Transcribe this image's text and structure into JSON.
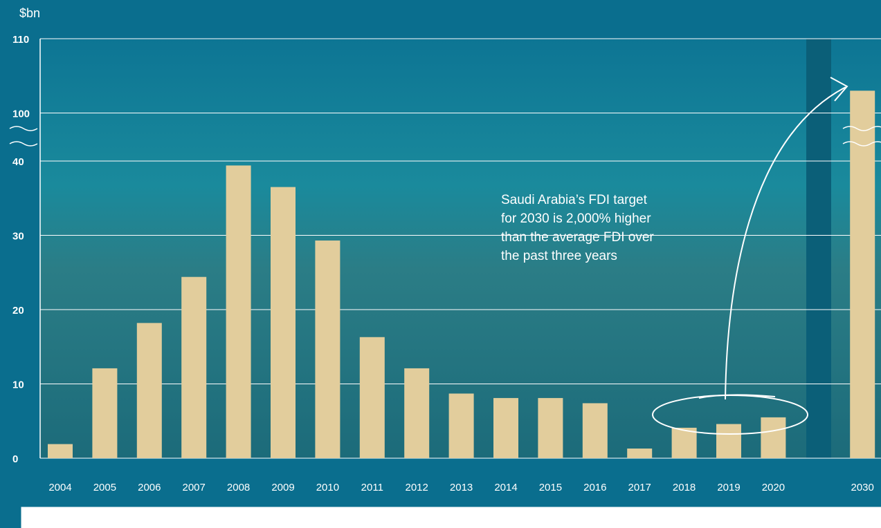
{
  "chart_data": {
    "type": "bar",
    "y_label": "$bn",
    "categories": [
      "2004",
      "2005",
      "2006",
      "2007",
      "2008",
      "2009",
      "2010",
      "2011",
      "2012",
      "2013",
      "2014",
      "2015",
      "2016",
      "2017",
      "2018",
      "2019",
      "2020",
      "2030"
    ],
    "values": [
      1.9,
      12.1,
      18.2,
      24.4,
      39.4,
      36.5,
      29.3,
      16.3,
      12.1,
      8.7,
      8.1,
      8.1,
      7.4,
      1.3,
      4.1,
      4.6,
      5.5,
      103
    ],
    "color": "#e2cd9c",
    "ylim": [
      0,
      110
    ],
    "ybreak": [
      42,
      98
    ],
    "yticks": [
      0,
      10,
      20,
      30,
      40,
      100,
      110
    ],
    "grid": true,
    "annotation": "Saudi Arabia’s FDI target for 2030 is 2,000% higher than the average FDI over the past three years"
  }
}
